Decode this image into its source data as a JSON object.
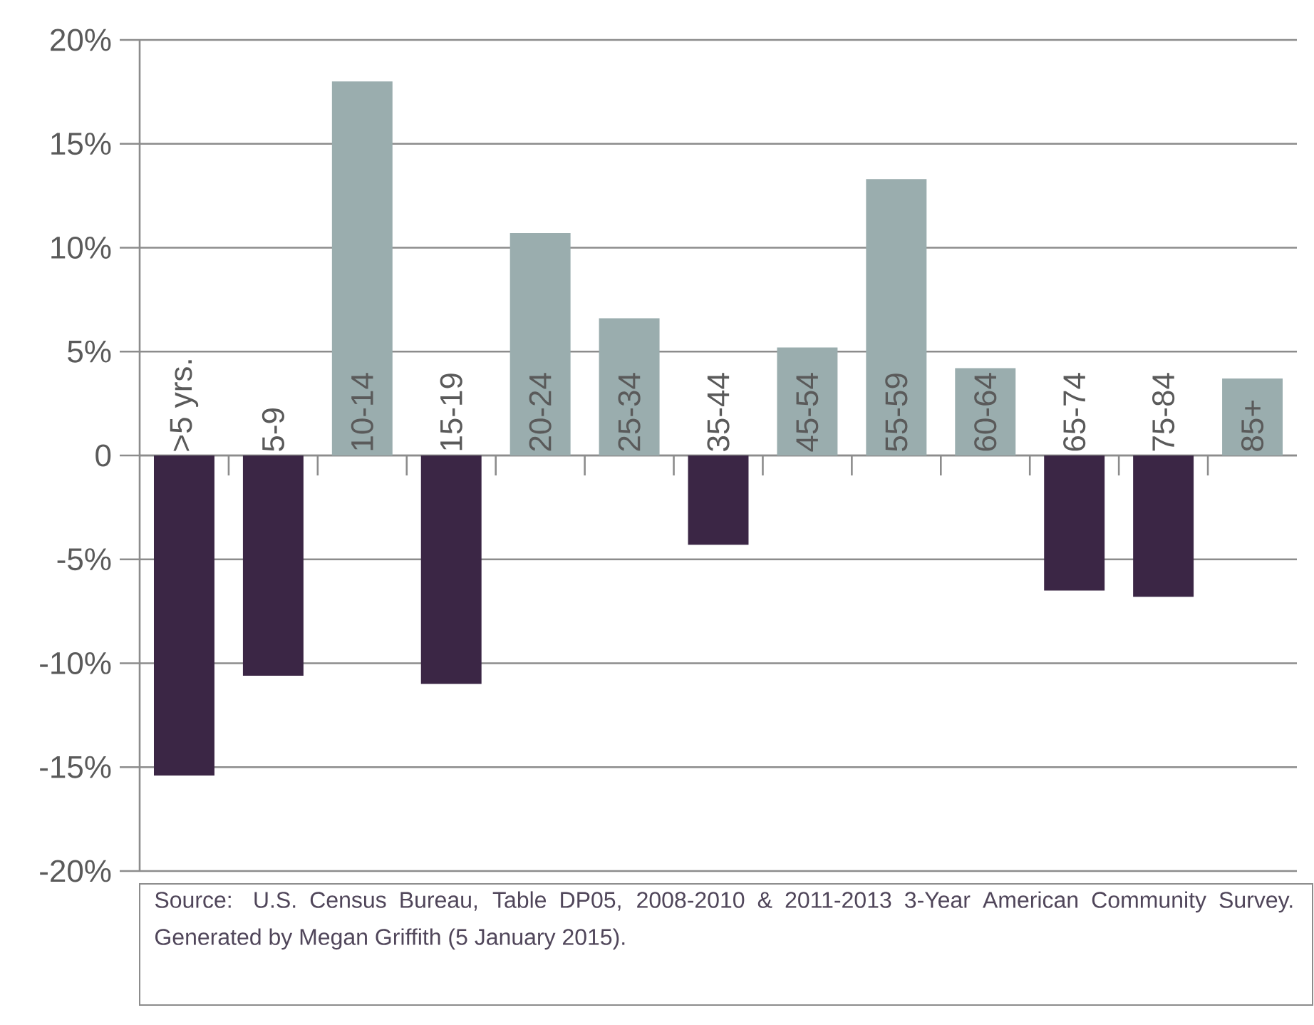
{
  "chart_data": {
    "type": "bar",
    "categories": [
      ">5 yrs.",
      "5-9",
      "10-14",
      "15-19",
      "20-24",
      "25-34",
      "35-44",
      "45-54",
      "55-59",
      "60-64",
      "65-74",
      "75-84",
      "85+"
    ],
    "values": [
      -15.4,
      -10.6,
      18.0,
      -11.0,
      10.7,
      6.6,
      -4.3,
      5.2,
      13.3,
      4.2,
      -6.5,
      -6.8,
      3.7
    ],
    "colors": [
      "#3b2645",
      "#3b2645",
      "#9aadae",
      "#3b2645",
      "#9aadae",
      "#9aadae",
      "#3b2645",
      "#9aadae",
      "#9aadae",
      "#9aadae",
      "#3b2645",
      "#3b2645",
      "#9aadae"
    ],
    "ylim": [
      -20,
      20
    ],
    "yticks": [
      {
        "value": -20,
        "label": "-20%"
      },
      {
        "value": -15,
        "label": "-15%"
      },
      {
        "value": -10,
        "label": "-10%"
      },
      {
        "value": -5,
        "label": "-5%"
      },
      0,
      {
        "value": 5,
        "label": "5%"
      },
      {
        "value": 10,
        "label": "10%"
      },
      {
        "value": 15,
        "label": "15%"
      },
      {
        "value": 20,
        "label": "20%"
      }
    ],
    "grid": "y",
    "annotations": [
      "Source: U.S. Census Bureau, Table DP05, 2008-2010 & 2011-2013 3-Year American Community Survey.",
      "Generated by Megan Griffith (5 January 2015)."
    ]
  }
}
